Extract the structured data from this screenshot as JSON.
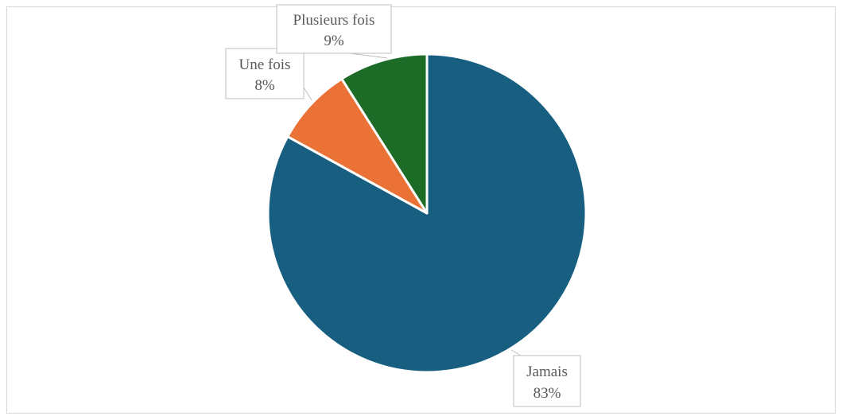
{
  "chart_data": {
    "type": "pie",
    "title": "",
    "slices": [
      {
        "label": "Jamais",
        "value": 83,
        "display": "83%",
        "color": "#175e80"
      },
      {
        "label": "Une fois",
        "value": 8,
        "display": "8%",
        "color": "#ea7236"
      },
      {
        "label": "Plusieurs fois",
        "value": 9,
        "display": "9%",
        "color": "#1c6b27"
      }
    ],
    "start_angle": "12 o'clock",
    "direction": "clockwise",
    "legend": "none",
    "data_labels": "outside with callout boxes"
  }
}
